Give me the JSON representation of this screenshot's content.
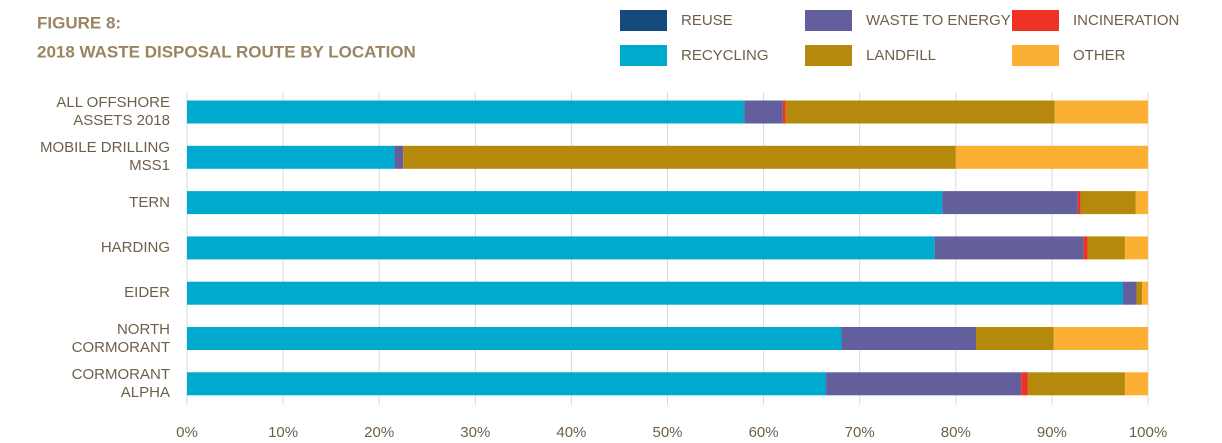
{
  "chart_data": {
    "type": "stacked-barh",
    "title": "FIGURE 8:",
    "subtitle": "2018 WASTE DISPOSAL ROUTE BY LOCATION",
    "categories": [
      "ALL OFFSHORE\nASSETS 2018",
      "MOBILE DRILLING\nMSS1",
      "TERN",
      "HARDING",
      "EIDER",
      "NORTH\nCORMORANT",
      "CORMORANT\nALPHA"
    ],
    "series": [
      {
        "name": "REUSE",
        "color": "#174a7c",
        "values": [
          0,
          0,
          0,
          0,
          0,
          0,
          0
        ]
      },
      {
        "name": "RECYCLING",
        "color": "#00a9ce",
        "values": [
          58,
          21.6,
          78.6,
          77.8,
          97.4,
          68.1,
          66.5
        ]
      },
      {
        "name": "WASTE TO ENERGY",
        "color": "#635e9c",
        "values": [
          4,
          0.9,
          14.1,
          15.5,
          1.4,
          14,
          20.3
        ]
      },
      {
        "name": "INCINERATION",
        "color": "#ee3224",
        "values": [
          0.3,
          0,
          0.3,
          0.4,
          0,
          0,
          0.7
        ]
      },
      {
        "name": "LANDFILL",
        "color": "#b5890b",
        "values": [
          28,
          57.5,
          5.7,
          3.9,
          0.6,
          8.1,
          10.1
        ]
      },
      {
        "name": "OTHER",
        "color": "#fbb034",
        "values": [
          9.7,
          20,
          1.3,
          2.4,
          0.6,
          9.8,
          2.4
        ]
      }
    ],
    "xlim": [
      0,
      100
    ],
    "xticks": [
      {
        "value": 0,
        "label": "0%"
      },
      {
        "value": 10,
        "label": "10%"
      },
      {
        "value": 20,
        "label": "20%"
      },
      {
        "value": 30,
        "label": "30%"
      },
      {
        "value": 40,
        "label": "40%"
      },
      {
        "value": 50,
        "label": "50%"
      },
      {
        "value": 60,
        "label": "60%"
      },
      {
        "value": 70,
        "label": "70%"
      },
      {
        "value": 80,
        "label": "80%"
      },
      {
        "value": 90,
        "label": "90%"
      },
      {
        "value": 100,
        "label": "100%"
      }
    ],
    "grid": true
  }
}
